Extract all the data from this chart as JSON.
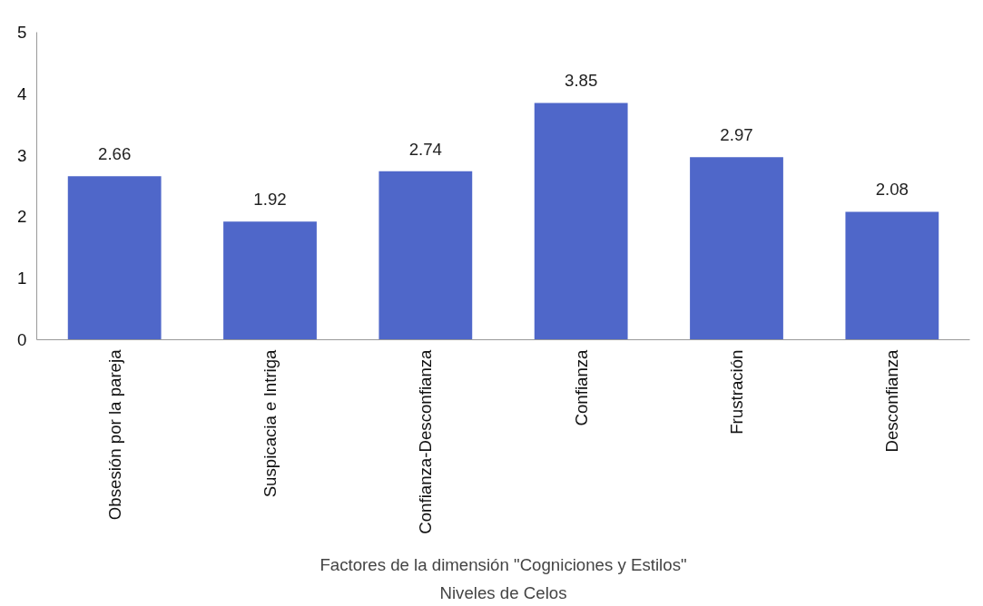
{
  "chart_data": {
    "type": "bar",
    "categories": [
      "Obsesión por la pareja",
      "Suspicacia e Intriga",
      "Confianza-Desconfianza",
      "Confianza",
      "Frustración",
      "Desconfianza"
    ],
    "values": [
      2.66,
      1.92,
      2.74,
      3.85,
      2.97,
      2.08
    ],
    "color": "#4f67c9",
    "ylim": [
      0,
      5
    ],
    "yticks": [
      0,
      1,
      2,
      3,
      4,
      5
    ],
    "grid": false,
    "data_labels": true,
    "xlabel": "Factores de la dimensión \"Cogniciones y Estilos\"",
    "annotations": [
      "Niveles de Celos"
    ]
  }
}
